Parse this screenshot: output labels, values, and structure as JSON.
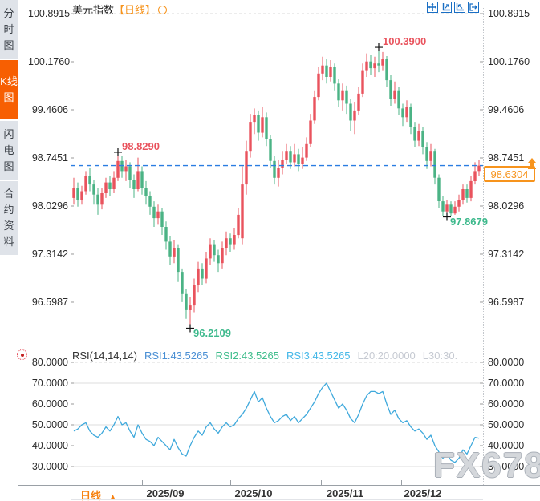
{
  "sidebar": {
    "tabs": [
      {
        "label": "分时图",
        "active": false
      },
      {
        "label": "K线图",
        "active": true
      },
      {
        "label": "闪电图",
        "active": false
      },
      {
        "label": "合约资料",
        "active": false
      }
    ]
  },
  "header": {
    "title": "美元指数",
    "period_tag": "【日线】"
  },
  "main_chart": {
    "y_axis_labels": [
      "100.8915",
      "100.1760",
      "99.4606",
      "98.7451",
      "98.0296",
      "97.3142",
      "96.5987"
    ],
    "current_price": "98.6304",
    "colors": {
      "up": "#e9535d",
      "down": "#4bb385",
      "dashed_line": "#2a7de1",
      "price_tag": "#f7941d",
      "annotation_red": "#e9535d",
      "annotation_green": "#3db98c"
    }
  },
  "rsi_panel": {
    "header": {
      "name": "RSI(14,14,14)",
      "rsi1": "RSI1:43.5265",
      "rsi2": "RSI2:43.5265",
      "rsi3": "RSI3:43.5265",
      "l20": "L20:20.0000",
      "l30": "L30:30."
    },
    "header_colors": {
      "name": "#333333",
      "rsi1": "#4a8fd4",
      "rsi2": "#3fbd8c",
      "rsi3": "#45b8e8",
      "l20": "#c6cad2",
      "l30": "#c6cad2"
    },
    "y_axis_labels": [
      "80.0000",
      "70.0000",
      "60.0000",
      "50.0000",
      "40.0000",
      "30.0000"
    ],
    "line_color": "#3fa9dc"
  },
  "bottom_bar": {
    "period_label": "日线",
    "arrow": "▲",
    "x_axis_labels": [
      "2025/09",
      "2025/10",
      "2025/11",
      "2025/12"
    ]
  },
  "watermark": "FX678",
  "chart_data": [
    {
      "type": "candlestick",
      "title": "美元指数 日线",
      "y_ticks": [
        100.8915,
        100.176,
        99.4606,
        98.7451,
        98.0296,
        97.3142,
        96.5987
      ],
      "ylim": [
        96.1,
        100.95
      ],
      "last_price": 98.6304,
      "marked_points": [
        {
          "index": 11,
          "price": 98.829,
          "label": "98.8290",
          "kind": "high"
        },
        {
          "index": 76,
          "price": 100.39,
          "label": "100.3900",
          "kind": "high"
        },
        {
          "index": 29,
          "price": 96.2109,
          "label": "96.2109",
          "kind": "low"
        },
        {
          "index": 93,
          "price": 97.8679,
          "label": "97.8679",
          "kind": "low"
        }
      ],
      "candles": [
        [
          98.15,
          98.45,
          98.05,
          98.3
        ],
        [
          98.3,
          98.38,
          98.02,
          98.12
        ],
        [
          98.12,
          98.33,
          98.05,
          98.25
        ],
        [
          98.25,
          98.55,
          98.2,
          98.48
        ],
        [
          98.48,
          98.6,
          98.25,
          98.35
        ],
        [
          98.35,
          98.42,
          98.05,
          98.2
        ],
        [
          98.2,
          98.3,
          97.9,
          98.05
        ],
        [
          98.05,
          98.3,
          97.98,
          98.22
        ],
        [
          98.22,
          98.45,
          98.15,
          98.38
        ],
        [
          98.38,
          98.48,
          98.18,
          98.28
        ],
        [
          98.28,
          98.55,
          98.22,
          98.45
        ],
        [
          98.45,
          98.829,
          98.4,
          98.7
        ],
        [
          98.7,
          98.78,
          98.45,
          98.55
        ],
        [
          98.55,
          98.72,
          98.4,
          98.62
        ],
        [
          98.62,
          98.68,
          98.3,
          98.42
        ],
        [
          98.42,
          98.5,
          98.15,
          98.28
        ],
        [
          98.28,
          98.75,
          98.25,
          98.55
        ],
        [
          98.55,
          98.62,
          98.2,
          98.3
        ],
        [
          98.3,
          98.4,
          98.05,
          98.18
        ],
        [
          98.18,
          98.25,
          97.9,
          98.02
        ],
        [
          98.02,
          98.1,
          97.72,
          97.85
        ],
        [
          97.85,
          98.05,
          97.75,
          97.95
        ],
        [
          97.95,
          98.0,
          97.6,
          97.72
        ],
        [
          97.72,
          97.8,
          97.38,
          97.5
        ],
        [
          97.5,
          97.58,
          97.15,
          97.28
        ],
        [
          97.28,
          97.52,
          97.18,
          97.4
        ],
        [
          97.4,
          97.45,
          96.9,
          97.05
        ],
        [
          97.05,
          97.1,
          96.6,
          96.72
        ],
        [
          96.72,
          96.8,
          96.35,
          96.48
        ],
        [
          96.48,
          96.68,
          96.2109,
          96.55
        ],
        [
          96.55,
          96.95,
          96.45,
          96.85
        ],
        [
          96.85,
          97.2,
          96.75,
          97.1
        ],
        [
          97.1,
          97.18,
          96.85,
          96.95
        ],
        [
          96.95,
          97.35,
          96.88,
          97.25
        ],
        [
          97.25,
          97.55,
          97.15,
          97.45
        ],
        [
          97.45,
          97.52,
          97.2,
          97.3
        ],
        [
          97.3,
          97.38,
          97.05,
          97.18
        ],
        [
          97.18,
          97.5,
          97.1,
          97.4
        ],
        [
          97.4,
          97.65,
          97.3,
          97.55
        ],
        [
          97.55,
          97.62,
          97.35,
          97.45
        ],
        [
          97.45,
          97.7,
          97.38,
          97.6
        ],
        [
          97.6,
          98.0,
          97.55,
          97.9
        ],
        [
          97.55,
          98.62,
          97.45,
          98.35
        ],
        [
          98.35,
          99.0,
          98.2,
          98.85
        ],
        [
          98.85,
          99.4,
          98.75,
          99.28
        ],
        [
          99.28,
          99.48,
          99.1,
          99.38
        ],
        [
          99.38,
          99.45,
          99.0,
          99.12
        ],
        [
          99.12,
          99.5,
          99.05,
          99.35
        ],
        [
          99.35,
          99.42,
          98.92,
          99.02
        ],
        [
          99.02,
          99.08,
          98.6,
          98.7
        ],
        [
          98.7,
          98.78,
          98.35,
          98.45
        ],
        [
          98.45,
          98.72,
          98.32,
          98.6
        ],
        [
          98.6,
          98.85,
          98.5,
          98.72
        ],
        [
          98.72,
          98.95,
          98.65,
          98.85
        ],
        [
          98.85,
          98.92,
          98.58,
          98.68
        ],
        [
          98.68,
          98.95,
          98.62,
          98.8
        ],
        [
          98.8,
          98.88,
          98.55,
          98.65
        ],
        [
          98.65,
          98.9,
          98.58,
          98.75
        ],
        [
          98.75,
          99.05,
          98.7,
          98.95
        ],
        [
          98.95,
          99.4,
          98.9,
          99.3
        ],
        [
          99.3,
          99.75,
          99.25,
          99.65
        ],
        [
          99.65,
          100.1,
          99.6,
          100.0
        ],
        [
          100.0,
          100.25,
          99.9,
          100.12
        ],
        [
          100.12,
          100.22,
          99.85,
          99.95
        ],
        [
          99.95,
          100.2,
          99.88,
          100.1
        ],
        [
          100.1,
          100.15,
          99.75,
          99.85
        ],
        [
          99.85,
          99.92,
          99.5,
          99.6
        ],
        [
          99.6,
          99.85,
          99.45,
          99.75
        ],
        [
          99.75,
          99.82,
          99.4,
          99.55
        ],
        [
          99.55,
          99.62,
          99.15,
          99.3
        ],
        [
          99.3,
          99.58,
          99.1,
          99.45
        ],
        [
          99.45,
          99.8,
          99.38,
          99.7
        ],
        [
          99.7,
          100.15,
          99.65,
          100.05
        ],
        [
          100.05,
          100.3,
          99.95,
          100.18
        ],
        [
          100.18,
          100.28,
          99.98,
          100.08
        ],
        [
          100.08,
          100.25,
          99.95,
          100.15
        ],
        [
          100.15,
          100.39,
          100.02,
          100.12
        ],
        [
          100.12,
          100.32,
          100.05,
          100.22
        ],
        [
          100.22,
          100.26,
          99.8,
          99.9
        ],
        [
          99.9,
          99.98,
          99.52,
          99.62
        ],
        [
          99.62,
          99.88,
          99.55,
          99.75
        ],
        [
          99.75,
          99.8,
          99.38,
          99.48
        ],
        [
          99.48,
          99.55,
          99.22,
          99.35
        ],
        [
          99.35,
          99.6,
          99.28,
          99.5
        ],
        [
          99.5,
          99.55,
          99.1,
          99.2
        ],
        [
          99.2,
          99.28,
          98.9,
          99.0
        ],
        [
          99.0,
          99.25,
          98.92,
          99.15
        ],
        [
          99.15,
          99.2,
          98.8,
          98.9
        ],
        [
          98.9,
          98.98,
          98.58,
          98.7
        ],
        [
          98.7,
          98.95,
          98.62,
          98.85
        ],
        [
          98.85,
          98.88,
          98.35,
          98.45
        ],
        [
          98.45,
          98.5,
          98.0,
          98.1
        ],
        [
          98.1,
          98.18,
          97.88,
          97.95
        ],
        [
          97.95,
          98.12,
          97.8679,
          98.05
        ],
        [
          98.05,
          98.1,
          97.88,
          97.92
        ],
        [
          97.92,
          98.1,
          97.9,
          98.02
        ],
        [
          98.02,
          98.2,
          97.95,
          98.12
        ],
        [
          98.12,
          98.35,
          98.05,
          98.28
        ],
        [
          98.28,
          98.35,
          98.08,
          98.15
        ],
        [
          98.15,
          98.48,
          98.1,
          98.4
        ],
        [
          98.4,
          98.68,
          98.35,
          98.55
        ],
        [
          98.55,
          98.72,
          98.48,
          98.6304
        ]
      ]
    },
    {
      "type": "line",
      "name": "RSI(14,14,14)",
      "y_ticks": [
        80,
        70,
        60,
        50,
        40,
        30
      ],
      "ylim": [
        25,
        85
      ],
      "values": [
        47,
        48,
        50,
        51,
        47,
        45,
        44,
        46,
        49,
        47,
        50,
        54,
        50,
        51,
        47,
        44,
        50,
        46,
        43,
        42,
        40,
        44,
        42,
        40,
        38,
        43,
        39,
        36,
        35,
        40,
        44,
        47,
        45,
        49,
        51,
        48,
        46,
        49,
        51,
        49,
        50,
        53,
        55,
        58,
        62,
        66,
        61,
        63,
        58,
        54,
        51,
        52,
        54,
        55,
        52,
        54,
        51,
        53,
        55,
        58,
        61,
        65,
        68,
        70,
        66,
        62,
        58,
        60,
        57,
        53,
        51,
        55,
        60,
        64,
        66,
        66,
        65,
        66,
        60,
        55,
        57,
        53,
        51,
        52,
        49,
        47,
        48,
        46,
        43,
        45,
        40,
        37,
        34,
        36,
        33,
        32,
        34,
        38,
        36,
        40,
        44,
        43.5265
      ]
    }
  ]
}
